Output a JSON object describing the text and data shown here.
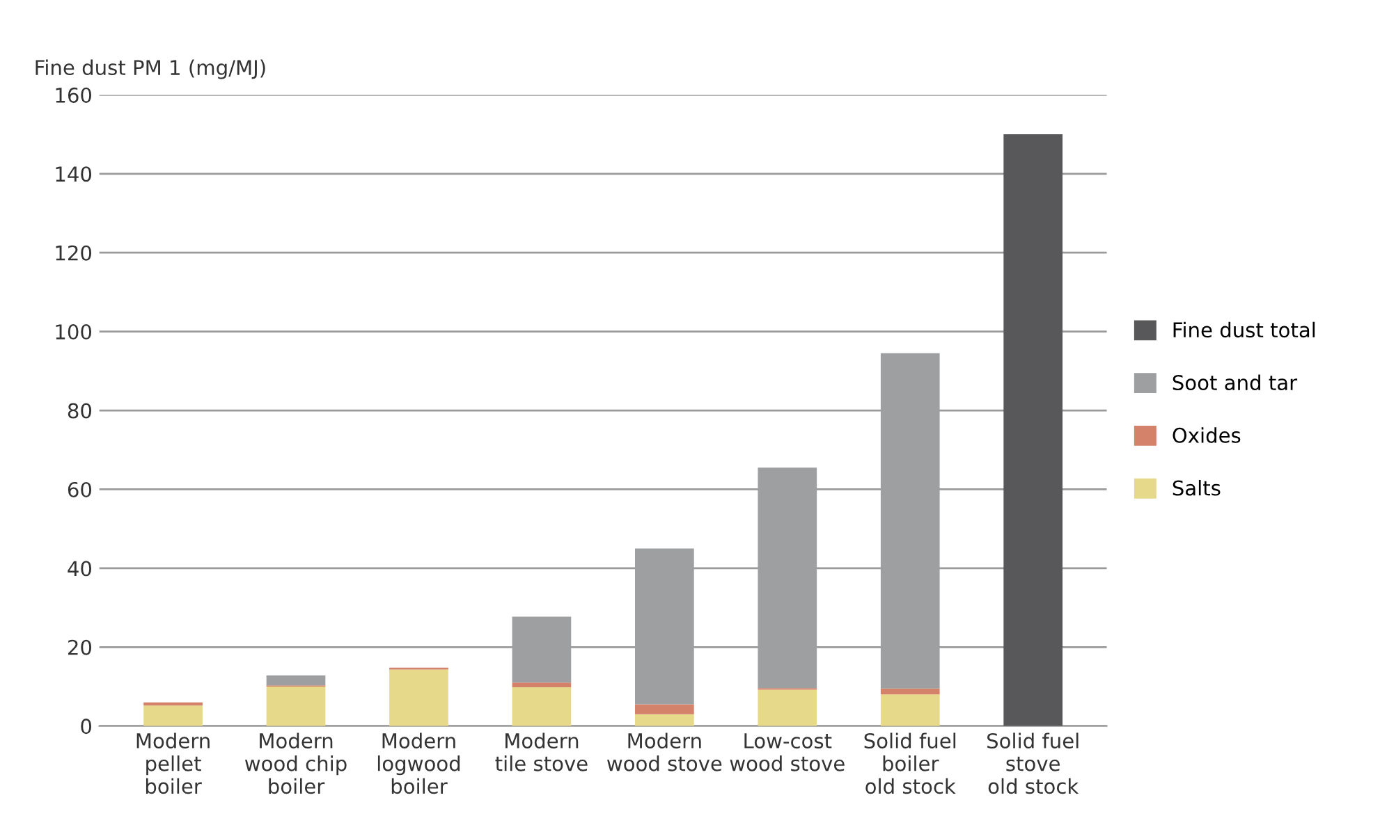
{
  "chart_data": {
    "type": "bar",
    "stacked": true,
    "ylabel": "Fine dust PM 1 (mg/MJ)",
    "categories": [
      "Modern\npellet\nboiler",
      "Modern\nwood chip\nboiler",
      "Modern\nlogwood\nboiler",
      "Modern\ntile stove",
      "Modern\nwood stove",
      "Low-cost\nwood stove",
      "Solid fuel\nboiler\nold stock",
      "Solid fuel\nstove\nold stock"
    ],
    "series": [
      {
        "name": "Salts",
        "color": "#e6d98a",
        "values": [
          5.2,
          10,
          14.3,
          9.8,
          3,
          9.2,
          8,
          null
        ]
      },
      {
        "name": "Oxides",
        "color": "#d4826a",
        "values": [
          0.8,
          0.3,
          0.5,
          1.2,
          2.5,
          0.4,
          1.5,
          null
        ]
      },
      {
        "name": "Soot and tar",
        "color": "#9d9fa0",
        "values": [
          null,
          2.5,
          null,
          16.7,
          39.5,
          55.9,
          85,
          null
        ]
      },
      {
        "name": "Fine dust total",
        "color": "#58585a",
        "values": [
          null,
          null,
          null,
          null,
          null,
          null,
          null,
          150
        ]
      }
    ],
    "ylim": [
      0,
      160
    ],
    "yticks": [
      0,
      20,
      40,
      60,
      80,
      100,
      120,
      140,
      160
    ],
    "grid": "y",
    "legend": "right"
  }
}
